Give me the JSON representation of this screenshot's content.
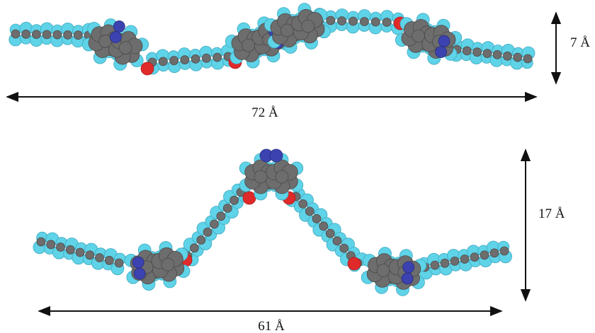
{
  "conformations": [
    {
      "id": "extended",
      "length_label": "72 Å",
      "height_label": "7 Å"
    },
    {
      "id": "bent",
      "length_label": "61 Å",
      "height_label": "17 Å"
    }
  ],
  "atom_types": [
    {
      "element": "hydrogen",
      "color": "#5fd3e8"
    },
    {
      "element": "carbon",
      "color": "#6d6d6d"
    },
    {
      "element": "nitrogen",
      "color": "#3c43b0"
    },
    {
      "element": "oxygen",
      "color": "#e02a2a"
    }
  ],
  "arrow_color": "#111111"
}
